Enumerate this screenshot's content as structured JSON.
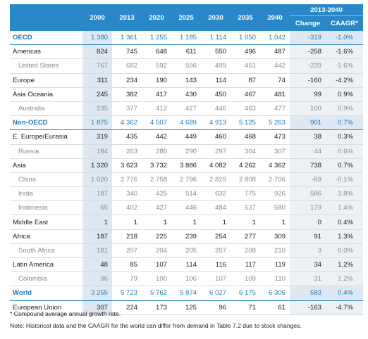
{
  "header": {
    "group_label": "2013-2040",
    "years": [
      "2000",
      "2013",
      "2020",
      "2025",
      "2030",
      "2035",
      "2040"
    ],
    "change_label": "Change",
    "cagr_label": "CAAGR*"
  },
  "rows": [
    {
      "label": "OECD",
      "type": "region",
      "values": [
        "1 380",
        "1 361",
        "1 255",
        "1 185",
        "1 114",
        "1 050",
        "1 042"
      ],
      "change": "-319",
      "cagr": "-1.0%"
    },
    {
      "label": "Americas",
      "type": "main",
      "values": [
        "824",
        "745",
        "648",
        "611",
        "550",
        "496",
        "487"
      ],
      "change": "-258",
      "cagr": "-1.6%"
    },
    {
      "label": "United States",
      "type": "sub",
      "values": [
        "767",
        "682",
        "592",
        "556",
        "499",
        "451",
        "442"
      ],
      "change": "-239",
      "cagr": "-1.6%"
    },
    {
      "label": "Europe",
      "type": "main",
      "values": [
        "311",
        "234",
        "190",
        "143",
        "114",
        "87",
        "74"
      ],
      "change": "-160",
      "cagr": "-4.2%"
    },
    {
      "label": "Asia Oceania",
      "type": "main",
      "values": [
        "245",
        "382",
        "417",
        "430",
        "450",
        "467",
        "481"
      ],
      "change": "99",
      "cagr": "0.9%"
    },
    {
      "label": "Australia",
      "type": "sub",
      "values": [
        "235",
        "377",
        "412",
        "427",
        "446",
        "463",
        "477"
      ],
      "change": "100",
      "cagr": "0.9%"
    },
    {
      "label": "Non-OECD",
      "type": "region",
      "values": [
        "1 875",
        "4 362",
        "4 507",
        "4 689",
        "4 913",
        "5 125",
        "5 263"
      ],
      "change": "901",
      "cagr": "0.7%"
    },
    {
      "label": "E. Europe/Eurasia",
      "type": "main",
      "values": [
        "319",
        "435",
        "442",
        "449",
        "460",
        "468",
        "473"
      ],
      "change": "38",
      "cagr": "0.3%"
    },
    {
      "label": "Russia",
      "type": "sub",
      "values": [
        "184",
        "263",
        "286",
        "290",
        "297",
        "304",
        "307"
      ],
      "change": "44",
      "cagr": "0.6%"
    },
    {
      "label": "Asia",
      "type": "main",
      "values": [
        "1 320",
        "3 623",
        "3 732",
        "3 886",
        "4 082",
        "4 262",
        "4 362"
      ],
      "change": "738",
      "cagr": "0.7%"
    },
    {
      "label": "China",
      "type": "sub",
      "values": [
        "1 020",
        "2 776",
        "2 758",
        "2 796",
        "2 829",
        "2 808",
        "2 706"
      ],
      "change": "-69",
      "cagr": "-0.1%"
    },
    {
      "label": "India",
      "type": "sub",
      "values": [
        "187",
        "340",
        "425",
        "514",
        "632",
        "775",
        "926"
      ],
      "change": "586",
      "cagr": "3.8%"
    },
    {
      "label": "Indonesia",
      "type": "sub",
      "values": [
        "65",
        "402",
        "427",
        "446",
        "484",
        "537",
        "580"
      ],
      "change": "179",
      "cagr": "1.4%"
    },
    {
      "label": "Middle East",
      "type": "main",
      "values": [
        "1",
        "1",
        "1",
        "1",
        "1",
        "1",
        "1"
      ],
      "change": "0",
      "cagr": "0.4%"
    },
    {
      "label": "Africa",
      "type": "main",
      "values": [
        "187",
        "218",
        "225",
        "239",
        "254",
        "277",
        "309"
      ],
      "change": "91",
      "cagr": "1.3%"
    },
    {
      "label": "South Africa",
      "type": "sub",
      "values": [
        "181",
        "207",
        "204",
        "205",
        "207",
        "208",
        "210"
      ],
      "change": "3",
      "cagr": "0.0%"
    },
    {
      "label": "Latin America",
      "type": "main",
      "values": [
        "48",
        "85",
        "107",
        "114",
        "116",
        "117",
        "119"
      ],
      "change": "34",
      "cagr": "1.2%"
    },
    {
      "label": "Colombia",
      "type": "sub",
      "values": [
        "36",
        "79",
        "100",
        "106",
        "107",
        "109",
        "110"
      ],
      "change": "31",
      "cagr": "1.2%"
    },
    {
      "label": "World",
      "type": "region",
      "values": [
        "3 255",
        "5 723",
        "5 762",
        "5 874",
        "6 027",
        "6 175",
        "6 306"
      ],
      "change": "583",
      "cagr": "0.4%"
    },
    {
      "label": "European Union",
      "type": "main",
      "values": [
        "307",
        "224",
        "173",
        "125",
        "96",
        "71",
        "61"
      ],
      "change": "-163",
      "cagr": "-4.7%"
    }
  ],
  "notes": [
    "* Compound average annual growth rate.",
    "Note: Historical data and the CAAGR for the world can differ from demand in Table 7.2 due to stock changes."
  ]
}
